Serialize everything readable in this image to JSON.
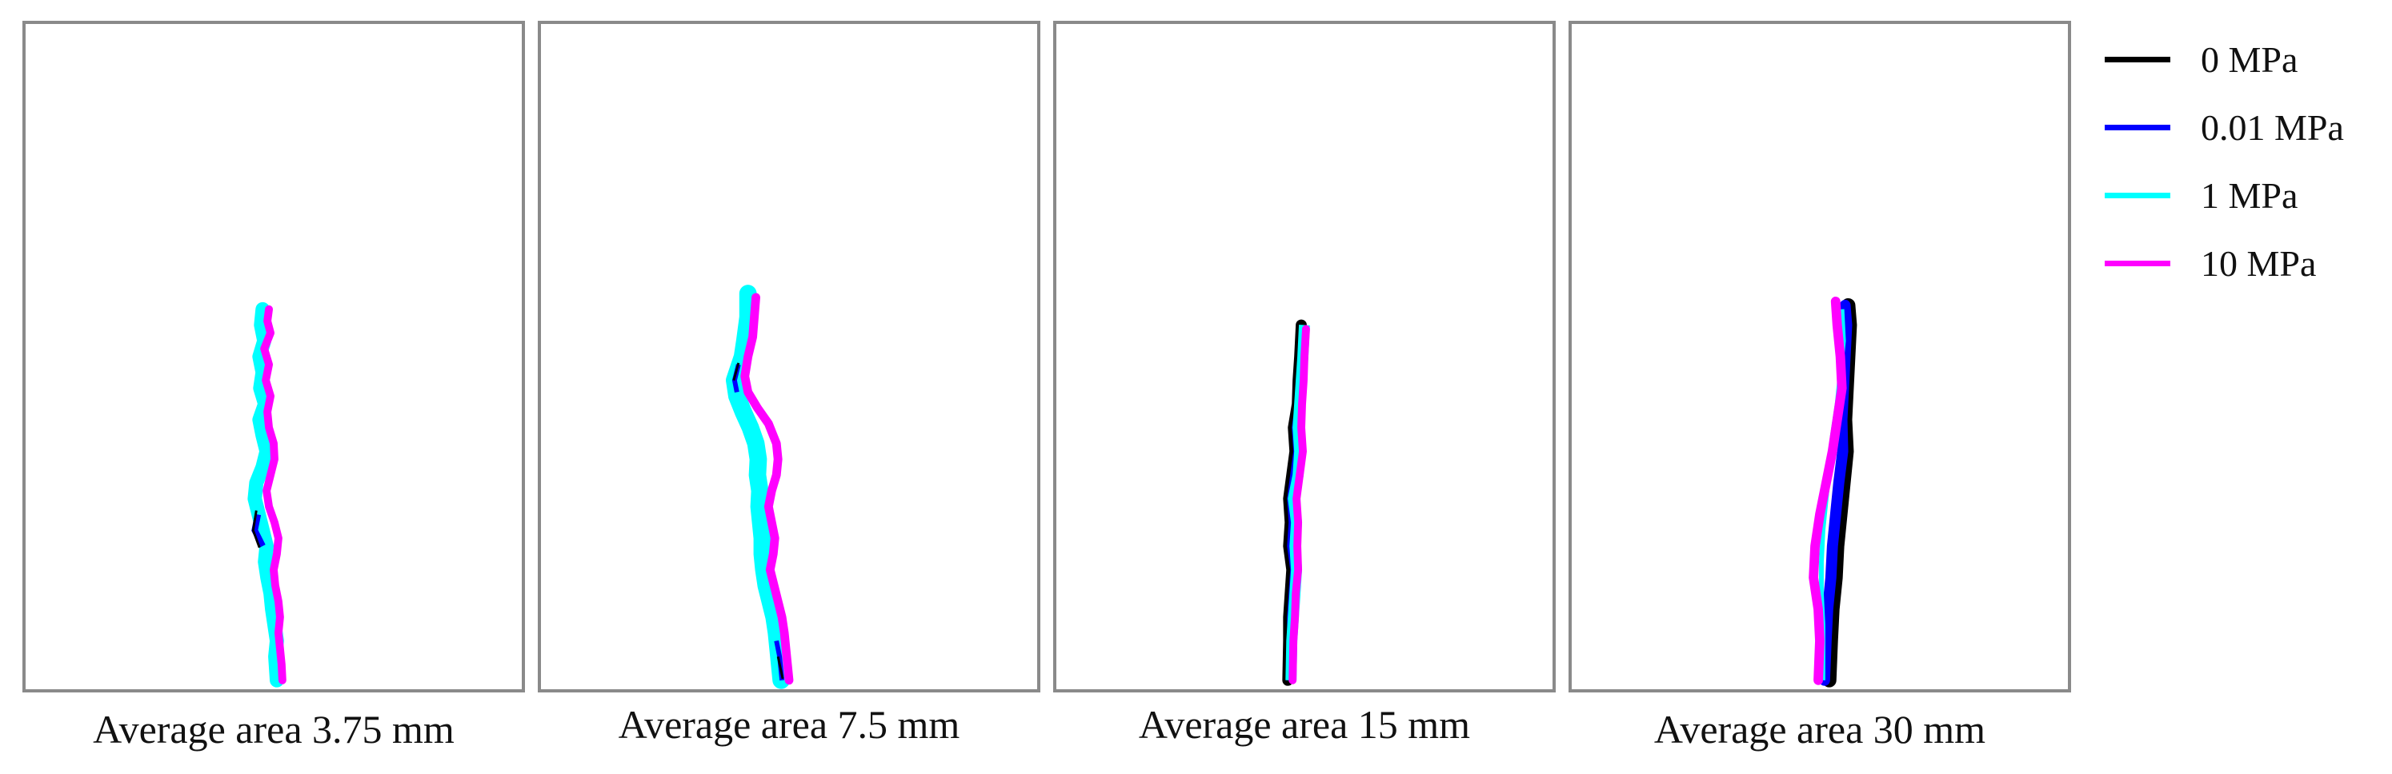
{
  "legend": {
    "items": [
      {
        "label": "0 MPa",
        "color": "#000000"
      },
      {
        "label": "0.01 MPa",
        "color": "#0000ff"
      },
      {
        "label": "1 MPa",
        "color": "#00ffff"
      },
      {
        "label": "10 MPa",
        "color": "#ff00ff"
      }
    ]
  },
  "panels": [
    {
      "caption": "Average area 3.75 mm"
    },
    {
      "caption": "Average area 7.5 mm"
    },
    {
      "caption": "Average area 15 mm"
    },
    {
      "caption": "Average area 30 mm"
    }
  ]
}
